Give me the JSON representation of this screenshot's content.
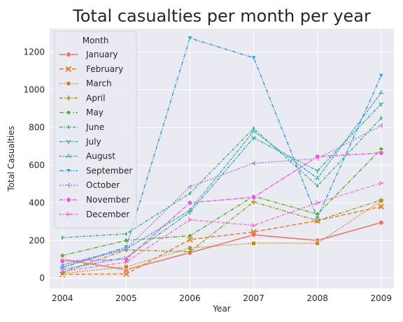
{
  "chart_data": {
    "type": "line",
    "title": "Total casualties per month per year",
    "xlabel": "Year",
    "ylabel": "Total Casualties",
    "x": [
      2004,
      2005,
      2006,
      2007,
      2008,
      2009
    ],
    "xlim": [
      2003.8,
      2009.2
    ],
    "ylim": [
      -55,
      1325
    ],
    "yticks": [
      0,
      200,
      400,
      600,
      800,
      1000,
      1200
    ],
    "grid": true,
    "legend": {
      "title": "Month",
      "placement": "upper-left"
    },
    "series": [
      {
        "name": "January",
        "color": "#f2716b",
        "dash": "",
        "marker": "circle",
        "values": [
          100,
          45,
          135,
          230,
          200,
          295
        ]
      },
      {
        "name": "February",
        "color": "#e7832a",
        "dash": "6,3",
        "marker": "x",
        "values": [
          20,
          22,
          205,
          245,
          305,
          380
        ]
      },
      {
        "name": "March",
        "color": "#c48a1f",
        "dash": "1.5,2",
        "marker": "square",
        "values": [
          25,
          60,
          160,
          185,
          185,
          410
        ]
      },
      {
        "name": "April",
        "color": "#a09b2c",
        "dash": "5,2,1.5,2",
        "marker": "plus",
        "values": [
          30,
          150,
          140,
          405,
          305,
          415
        ]
      },
      {
        "name": "May",
        "color": "#62ad34",
        "dash": "6,2,1.5,2",
        "marker": "diamond",
        "values": [
          120,
          200,
          225,
          435,
          340,
          685
        ]
      },
      {
        "name": "June",
        "color": "#3bb07f",
        "dash": "4,2,1.5,2",
        "marker": "thin_diamond",
        "values": [
          215,
          235,
          450,
          795,
          490,
          850
        ]
      },
      {
        "name": "July",
        "color": "#36ac9e",
        "dash": "4,1.5,1.5,1.5,1.5,1.5",
        "marker": "tri_down",
        "values": [
          45,
          110,
          350,
          745,
          570,
          925
        ]
      },
      {
        "name": "August",
        "color": "#38a6ba",
        "dash": "3,1.5,1.5,1.5",
        "marker": "tri_up",
        "values": [
          70,
          155,
          360,
          780,
          530,
          985
        ]
      },
      {
        "name": "September",
        "color": "#3aa0e0",
        "dash": "6,2,1.5,2",
        "marker": "triangle_down",
        "values": [
          55,
          165,
          1275,
          1170,
          320,
          1075
        ]
      },
      {
        "name": "October",
        "color": "#a77ef0",
        "dash": "2,2",
        "marker": "tri_left",
        "values": [
          60,
          155,
          485,
          610,
          635,
          810
        ]
      },
      {
        "name": "November",
        "color": "#e85ce8",
        "dash": "5,1.5,1.5,1.5",
        "marker": "circle",
        "values": [
          90,
          100,
          400,
          430,
          645,
          665
        ]
      },
      {
        "name": "December",
        "color": "#f45ec8",
        "dash": "3,2,1,2",
        "marker": "tri_right",
        "values": [
          35,
          85,
          310,
          280,
          400,
          505
        ]
      }
    ]
  }
}
